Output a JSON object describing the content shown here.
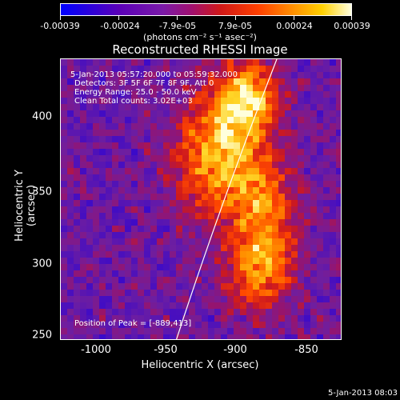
{
  "colorbar": {
    "ticks": [
      "-0.00039",
      "-0.00024",
      "-7.9e-05",
      "7.9e-05",
      "0.00024",
      "0.00039"
    ],
    "units": "(photons cm⁻² s⁻¹ asec⁻²)"
  },
  "title": "Reconstructed RHESSI Image",
  "info": {
    "time": "5-Jan-2013 05:57:20.000 to 05:59:32.000",
    "detectors": "Detectors: 3F 5F 6F 7F 8F 9F, Att 0",
    "energy": "Energy Range: 25.0 - 50.0 keV",
    "clean": "Clean    Total counts: 3.02E+03",
    "peak": "Position of Peak = [-889,413]"
  },
  "axes": {
    "xlabel": "Heliocentric X (arcsec)",
    "ylabel": "Heliocentric Y (arcsec)",
    "xticks": [
      "-1000",
      "-950",
      "-900",
      "-850"
    ],
    "yticks": [
      "400",
      "350",
      "300",
      "250"
    ]
  },
  "stamp": "5-Jan-2013 08:03"
}
